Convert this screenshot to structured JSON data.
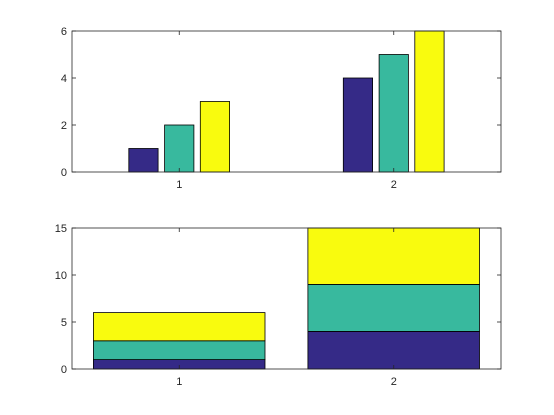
{
  "chart_data": [
    {
      "type": "bar",
      "layout": "grouped",
      "categories": [
        "1",
        "2"
      ],
      "series": [
        {
          "values": [
            1,
            4
          ],
          "color": "#352A87"
        },
        {
          "values": [
            2,
            5
          ],
          "color": "#38B99E"
        },
        {
          "values": [
            3,
            6
          ],
          "color": "#F9FB0E"
        }
      ],
      "ylim": [
        0,
        6
      ],
      "yticks": [
        "0",
        "2",
        "4",
        "6"
      ],
      "grid": false
    },
    {
      "type": "bar",
      "layout": "stacked",
      "categories": [
        "1",
        "2"
      ],
      "series": [
        {
          "values": [
            1,
            4
          ],
          "color": "#352A87"
        },
        {
          "values": [
            2,
            5
          ],
          "color": "#38B99E"
        },
        {
          "values": [
            3,
            6
          ],
          "color": "#F9FB0E"
        }
      ],
      "ylim": [
        0,
        15
      ],
      "yticks": [
        "0",
        "5",
        "10",
        "15"
      ],
      "grid": false
    }
  ]
}
